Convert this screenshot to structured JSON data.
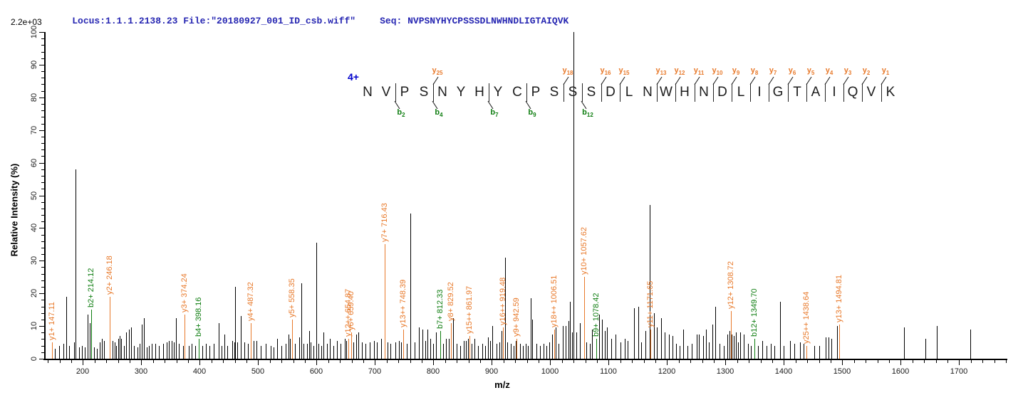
{
  "header": {
    "locus_file": "Locus:1.1.1.2138.23 File:\"20180927_001_ID_csb.wiff\"",
    "seq": "Seq: NVPSNYHYCPSSSDLNWHNDLIGTAIQVK",
    "base_peak_label": "2.2e+03"
  },
  "colors": {
    "y_ion": "#e8792a",
    "b_ion": "#0e7d10",
    "header_blue": "#2626b2",
    "charge_blue": "#0000cd",
    "peak_black": "#000000"
  },
  "peptide": {
    "charge_label": "4+",
    "residues": [
      "N",
      "V",
      "P",
      "S",
      "N",
      "Y",
      "H",
      "Y",
      "C",
      "P",
      "S",
      "S",
      "S",
      "D",
      "L",
      "N",
      "W",
      "H",
      "N",
      "D",
      "L",
      "I",
      "G",
      "T",
      "A",
      "I",
      "Q",
      "V",
      "K"
    ],
    "cleavages": [
      {
        "after": 2,
        "series": "b",
        "number": 2
      },
      {
        "after": 4,
        "series": "y",
        "number": 25
      },
      {
        "after": 4,
        "series": "b",
        "number": 4
      },
      {
        "after": 7,
        "series": "b",
        "number": 7
      },
      {
        "after": 9,
        "series": "b",
        "number": 9
      },
      {
        "after": 11,
        "series": "y",
        "number": 18
      },
      {
        "after": 12,
        "series": "b",
        "number": 12
      },
      {
        "after": 13,
        "series": "y",
        "number": 16
      },
      {
        "after": 14,
        "series": "y",
        "number": 15
      },
      {
        "after": 16,
        "series": "y",
        "number": 13
      },
      {
        "after": 17,
        "series": "y",
        "number": 12
      },
      {
        "after": 18,
        "series": "y",
        "number": 11
      },
      {
        "after": 19,
        "series": "y",
        "number": 10
      },
      {
        "after": 20,
        "series": "y",
        "number": 9
      },
      {
        "after": 21,
        "series": "y",
        "number": 8
      },
      {
        "after": 22,
        "series": "y",
        "number": 7
      },
      {
        "after": 23,
        "series": "y",
        "number": 6
      },
      {
        "after": 24,
        "series": "y",
        "number": 5
      },
      {
        "after": 25,
        "series": "y",
        "number": 4
      },
      {
        "after": 26,
        "series": "y",
        "number": 3
      },
      {
        "after": 27,
        "series": "y",
        "number": 2
      },
      {
        "after": 28,
        "series": "y",
        "number": 1
      }
    ]
  },
  "chart_data": {
    "type": "bar",
    "subtype": "ms2-centroid-stick-spectrum",
    "title": "Locus:1.1.1.2138.23 File:\"20180927_001_ID_csb.wiff\"  Seq: NVPSNYHYCPSSSDLNWHNDLIGTAIQVK",
    "xlabel": "m/z",
    "ylabel": "Relative  Intensity (%)",
    "xlim": [
      135,
      1780
    ],
    "ylim": [
      0,
      100
    ],
    "x_major_tick": 100,
    "x_minor_tick": 20,
    "y_major_tick": 10,
    "y_minor_tick": 2,
    "x_tick_labels": [
      200,
      300,
      400,
      500,
      600,
      700,
      800,
      900,
      1000,
      1100,
      1200,
      1300,
      1400,
      1500,
      1600,
      1700
    ],
    "y_tick_labels": [
      0,
      10,
      20,
      30,
      40,
      50,
      60,
      70,
      80,
      90,
      100
    ],
    "grid": false,
    "legend": false,
    "base_peak_intensity": "2.2e+03",
    "labeled_ions": [
      {
        "label": "y1+ 147.11",
        "mz": 147.11,
        "intensity": 5,
        "series": "y"
      },
      {
        "label": "b2+ 214.12",
        "mz": 214.12,
        "intensity": 15,
        "series": "b"
      },
      {
        "label": "y2+ 246.18",
        "mz": 246.18,
        "intensity": 19,
        "series": "y"
      },
      {
        "label": "y3+ 374.24",
        "mz": 374.24,
        "intensity": 13.5,
        "series": "y"
      },
      {
        "label": "b4+ 398.16",
        "mz": 398.16,
        "intensity": 6,
        "series": "b"
      },
      {
        "label": "y4+ 487.32",
        "mz": 487.32,
        "intensity": 11,
        "series": "y"
      },
      {
        "label": "y5+ 558.35",
        "mz": 558.35,
        "intensity": 12,
        "series": "y"
      },
      {
        "label": "y12++ 654.87",
        "mz": 654.87,
        "intensity": 6,
        "series": "y"
      },
      {
        "label": "y6+ 659.40",
        "mz": 659.4,
        "intensity": 8,
        "series": "y"
      },
      {
        "label": "y7+ 716.43",
        "mz": 716.43,
        "intensity": 35,
        "series": "y"
      },
      {
        "label": "y13++ 748.39",
        "mz": 748.39,
        "intensity": 9,
        "series": "y"
      },
      {
        "label": "b7+ 812.33",
        "mz": 812.33,
        "intensity": 8.5,
        "series": "b"
      },
      {
        "label": "y8+ 829.52",
        "mz": 829.52,
        "intensity": 11,
        "series": "y"
      },
      {
        "label": "y15++ 861.97",
        "mz": 861.97,
        "intensity": 7,
        "series": "y"
      },
      {
        "label": "y16++ 919.48",
        "mz": 919.48,
        "intensity": 9.5,
        "series": "y"
      },
      {
        "label": "y9+ 942.59",
        "mz": 942.59,
        "intensity": 6,
        "series": "y"
      },
      {
        "label": "y18++ 1006.51",
        "mz": 1006.51,
        "intensity": 9,
        "series": "y"
      },
      {
        "label": "y10+ 1057.62",
        "mz": 1057.62,
        "intensity": 25,
        "series": "y"
      },
      {
        "label": "b9+ 1078.42",
        "mz": 1078.42,
        "intensity": 6,
        "series": "b"
      },
      {
        "label": "y11+ 1171.65",
        "mz": 1171.65,
        "intensity": 9,
        "series": "y"
      },
      {
        "label": "y12+ 1308.72",
        "mz": 1308.72,
        "intensity": 14.5,
        "series": "y"
      },
      {
        "label": "b12+ 1349.70",
        "mz": 1349.7,
        "intensity": 6,
        "series": "b"
      },
      {
        "label": "y25++ 1438.64",
        "mz": 1438.64,
        "intensity": 4,
        "series": "y"
      },
      {
        "label": "y13+ 1494.81",
        "mz": 1494.81,
        "intensity": 10.5,
        "series": "y"
      }
    ],
    "peaks": [
      [
        152,
        3
      ],
      [
        159,
        4
      ],
      [
        167,
        4.5
      ],
      [
        171,
        19
      ],
      [
        176,
        4
      ],
      [
        185,
        5
      ],
      [
        187.1,
        58
      ],
      [
        193,
        3.5
      ],
      [
        199,
        4
      ],
      [
        203,
        3.5
      ],
      [
        208,
        13.5
      ],
      [
        212,
        11
      ],
      [
        219,
        3.5
      ],
      [
        224,
        3
      ],
      [
        229,
        5
      ],
      [
        233,
        6
      ],
      [
        236,
        5.5
      ],
      [
        251,
        5.5
      ],
      [
        254,
        5
      ],
      [
        257,
        4
      ],
      [
        261,
        6
      ],
      [
        263.5,
        7
      ],
      [
        266,
        6
      ],
      [
        270,
        4
      ],
      [
        274,
        8
      ],
      [
        279,
        9
      ],
      [
        283,
        9.5
      ],
      [
        288,
        4
      ],
      [
        293,
        3.5
      ],
      [
        297,
        4.5
      ],
      [
        301,
        10.5
      ],
      [
        304,
        12.5
      ],
      [
        309,
        3.5
      ],
      [
        313,
        4
      ],
      [
        318,
        4.5
      ],
      [
        324,
        4.5
      ],
      [
        330,
        4
      ],
      [
        337,
        4.5
      ],
      [
        343,
        5
      ],
      [
        347,
        5.5
      ],
      [
        352,
        5.5
      ],
      [
        356,
        5
      ],
      [
        359,
        12.5
      ],
      [
        364,
        4.5
      ],
      [
        371,
        4
      ],
      [
        381,
        4
      ],
      [
        386,
        4.5
      ],
      [
        392,
        4
      ],
      [
        405,
        4
      ],
      [
        411,
        4.5
      ],
      [
        417,
        4
      ],
      [
        424,
        4.5
      ],
      [
        433,
        11
      ],
      [
        438,
        4
      ],
      [
        442,
        7.5
      ],
      [
        447,
        4
      ],
      [
        456,
        5.5
      ],
      [
        459,
        5
      ],
      [
        460.8,
        22
      ],
      [
        464,
        5
      ],
      [
        470,
        13
      ],
      [
        476,
        5
      ],
      [
        482,
        4.5
      ],
      [
        492,
        5.5
      ],
      [
        497,
        5.5
      ],
      [
        505,
        4
      ],
      [
        513,
        4.5
      ],
      [
        521,
        4
      ],
      [
        527,
        3.5
      ],
      [
        532,
        6
      ],
      [
        540,
        4
      ],
      [
        547,
        4.5
      ],
      [
        552,
        7.5
      ],
      [
        555,
        6
      ],
      [
        563,
        4.5
      ],
      [
        570,
        6.5
      ],
      [
        574,
        23
      ],
      [
        578,
        4.5
      ],
      [
        584,
        4.5
      ],
      [
        587,
        8.5
      ],
      [
        590,
        5
      ],
      [
        595,
        4
      ],
      [
        599,
        35.5
      ],
      [
        603,
        4.5
      ],
      [
        608,
        4
      ],
      [
        612,
        8
      ],
      [
        618,
        4.5
      ],
      [
        623,
        6
      ],
      [
        629,
        4
      ],
      [
        635,
        5.5
      ],
      [
        641,
        4.5
      ],
      [
        648,
        6
      ],
      [
        651,
        5.5
      ],
      [
        663,
        5
      ],
      [
        668,
        7.5
      ],
      [
        671,
        8
      ],
      [
        678,
        5
      ],
      [
        684,
        4.5
      ],
      [
        691,
        5
      ],
      [
        698,
        5.5
      ],
      [
        703,
        5
      ],
      [
        710,
        6
      ],
      [
        721,
        5
      ],
      [
        727,
        4.5
      ],
      [
        735,
        5
      ],
      [
        741,
        5.5
      ],
      [
        745,
        5
      ],
      [
        755,
        4.5
      ],
      [
        761,
        44.5
      ],
      [
        768,
        5
      ],
      [
        775,
        9.5
      ],
      [
        781,
        9
      ],
      [
        786,
        5.5
      ],
      [
        790,
        9
      ],
      [
        795,
        6
      ],
      [
        800,
        4.5
      ],
      [
        805,
        8
      ],
      [
        817,
        4.5
      ],
      [
        822,
        6
      ],
      [
        826,
        6
      ],
      [
        834,
        12.5
      ],
      [
        840,
        4.5
      ],
      [
        846,
        4
      ],
      [
        852,
        5.5
      ],
      [
        856,
        5.5
      ],
      [
        859,
        6
      ],
      [
        866,
        4.5
      ],
      [
        870,
        6
      ],
      [
        877,
        4
      ],
      [
        884,
        4.5
      ],
      [
        889,
        4
      ],
      [
        893,
        6.5
      ],
      [
        897,
        5.5
      ],
      [
        901,
        10
      ],
      [
        908,
        4.5
      ],
      [
        913,
        5
      ],
      [
        917,
        8.5
      ],
      [
        922.5,
        31
      ],
      [
        926,
        5
      ],
      [
        932,
        4.5
      ],
      [
        937,
        4
      ],
      [
        941,
        5.5
      ],
      [
        948,
        4.5
      ],
      [
        953,
        4
      ],
      [
        958,
        4.5
      ],
      [
        962,
        4
      ],
      [
        967,
        18.5
      ],
      [
        969.5,
        12
      ],
      [
        976,
        4.5
      ],
      [
        982,
        4
      ],
      [
        988,
        4.5
      ],
      [
        993,
        4
      ],
      [
        998,
        5
      ],
      [
        1003,
        7.5
      ],
      [
        1009,
        9.5
      ],
      [
        1014,
        4.5
      ],
      [
        1022,
        10
      ],
      [
        1026,
        10
      ],
      [
        1031,
        11.5
      ],
      [
        1034,
        17.5
      ],
      [
        1037,
        8
      ],
      [
        1040.2,
        100
      ],
      [
        1045,
        8
      ],
      [
        1051,
        11
      ],
      [
        1062,
        5
      ],
      [
        1068,
        4.5
      ],
      [
        1071,
        9
      ],
      [
        1084,
        13.5
      ],
      [
        1088,
        12
      ],
      [
        1093,
        8.5
      ],
      [
        1097,
        9.5
      ],
      [
        1104,
        6
      ],
      [
        1112,
        7.5
      ],
      [
        1120,
        5
      ],
      [
        1127,
        6
      ],
      [
        1133,
        5.5
      ],
      [
        1143,
        15.5
      ],
      [
        1151,
        16
      ],
      [
        1156,
        5
      ],
      [
        1163,
        8.5
      ],
      [
        1169.8,
        47
      ],
      [
        1177,
        14
      ],
      [
        1183,
        9.5
      ],
      [
        1190,
        12.5
      ],
      [
        1196,
        8
      ],
      [
        1203,
        7.5
      ],
      [
        1209,
        7
      ],
      [
        1216,
        4.5
      ],
      [
        1222,
        4
      ],
      [
        1228,
        9
      ],
      [
        1235,
        4
      ],
      [
        1242,
        4.5
      ],
      [
        1251,
        7.5
      ],
      [
        1254,
        7.5
      ],
      [
        1262,
        7
      ],
      [
        1267,
        9
      ],
      [
        1271,
        5
      ],
      [
        1277,
        10.5
      ],
      [
        1283,
        16
      ],
      [
        1290,
        4.5
      ],
      [
        1297,
        4
      ],
      [
        1303,
        7.5
      ],
      [
        1307,
        8.5
      ],
      [
        1311,
        7.5
      ],
      [
        1314,
        7
      ],
      [
        1317.5,
        8
      ],
      [
        1321,
        5
      ],
      [
        1325,
        8
      ],
      [
        1331,
        7.5
      ],
      [
        1338,
        4.5
      ],
      [
        1344,
        4
      ],
      [
        1356,
        4
      ],
      [
        1363,
        5.5
      ],
      [
        1370,
        4
      ],
      [
        1377,
        4.5
      ],
      [
        1384,
        4
      ],
      [
        1393,
        17.5
      ],
      [
        1400,
        4
      ],
      [
        1411,
        5.5
      ],
      [
        1418,
        4.5
      ],
      [
        1428,
        5
      ],
      [
        1434,
        4.5
      ],
      [
        1452,
        4
      ],
      [
        1460,
        4
      ],
      [
        1472,
        6.5
      ],
      [
        1476,
        6.5
      ],
      [
        1481,
        6
      ],
      [
        1491,
        10
      ],
      [
        1606,
        9.5
      ],
      [
        1642,
        6
      ],
      [
        1662,
        10
      ],
      [
        1719,
        9
      ]
    ]
  }
}
